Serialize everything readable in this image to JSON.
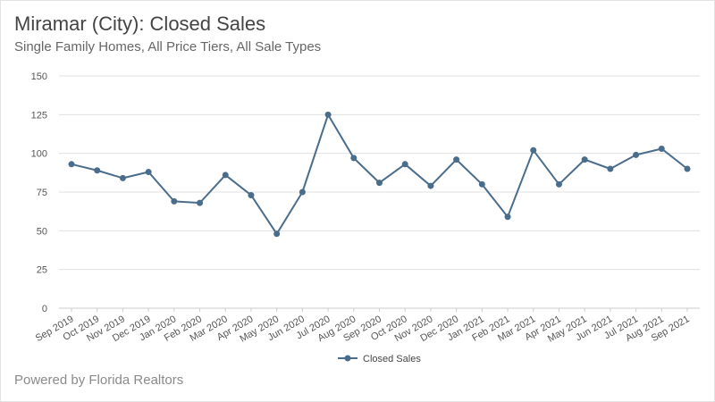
{
  "title": "Miramar (City): Closed Sales",
  "subtitle": "Single Family Homes, All Price Tiers, All Sale Types",
  "footer": "Powered by Florida Realtors",
  "colors": {
    "series": "#4a6d8c",
    "grid": "#e0e0e0",
    "axis": "#cccccc"
  },
  "chart_data": {
    "type": "line",
    "title": "Miramar (City): Closed Sales",
    "subtitle": "Single Family Homes, All Price Tiers, All Sale Types",
    "categories": [
      "Sep 2019",
      "Oct 2019",
      "Nov 2019",
      "Dec 2019",
      "Jan 2020",
      "Feb 2020",
      "Mar 2020",
      "Apr 2020",
      "May 2020",
      "Jun 2020",
      "Jul 2020",
      "Aug 2020",
      "Sep 2020",
      "Oct 2020",
      "Nov 2020",
      "Dec 2020",
      "Jan 2021",
      "Feb 2021",
      "Mar 2021",
      "Apr 2021",
      "May 2021",
      "Jun 2021",
      "Jul 2021",
      "Aug 2021",
      "Sep 2021"
    ],
    "series": [
      {
        "name": "Closed Sales",
        "values": [
          93,
          89,
          84,
          88,
          69,
          68,
          86,
          73,
          48,
          75,
          125,
          97,
          81,
          93,
          79,
          96,
          80,
          59,
          102,
          80,
          96,
          90,
          99,
          103,
          90
        ]
      }
    ],
    "xlabel": "",
    "ylabel": "",
    "ylim": [
      0,
      150
    ],
    "yticks": [
      0,
      25,
      50,
      75,
      100,
      125,
      150
    ],
    "grid": true,
    "legend": "bottom-center"
  }
}
